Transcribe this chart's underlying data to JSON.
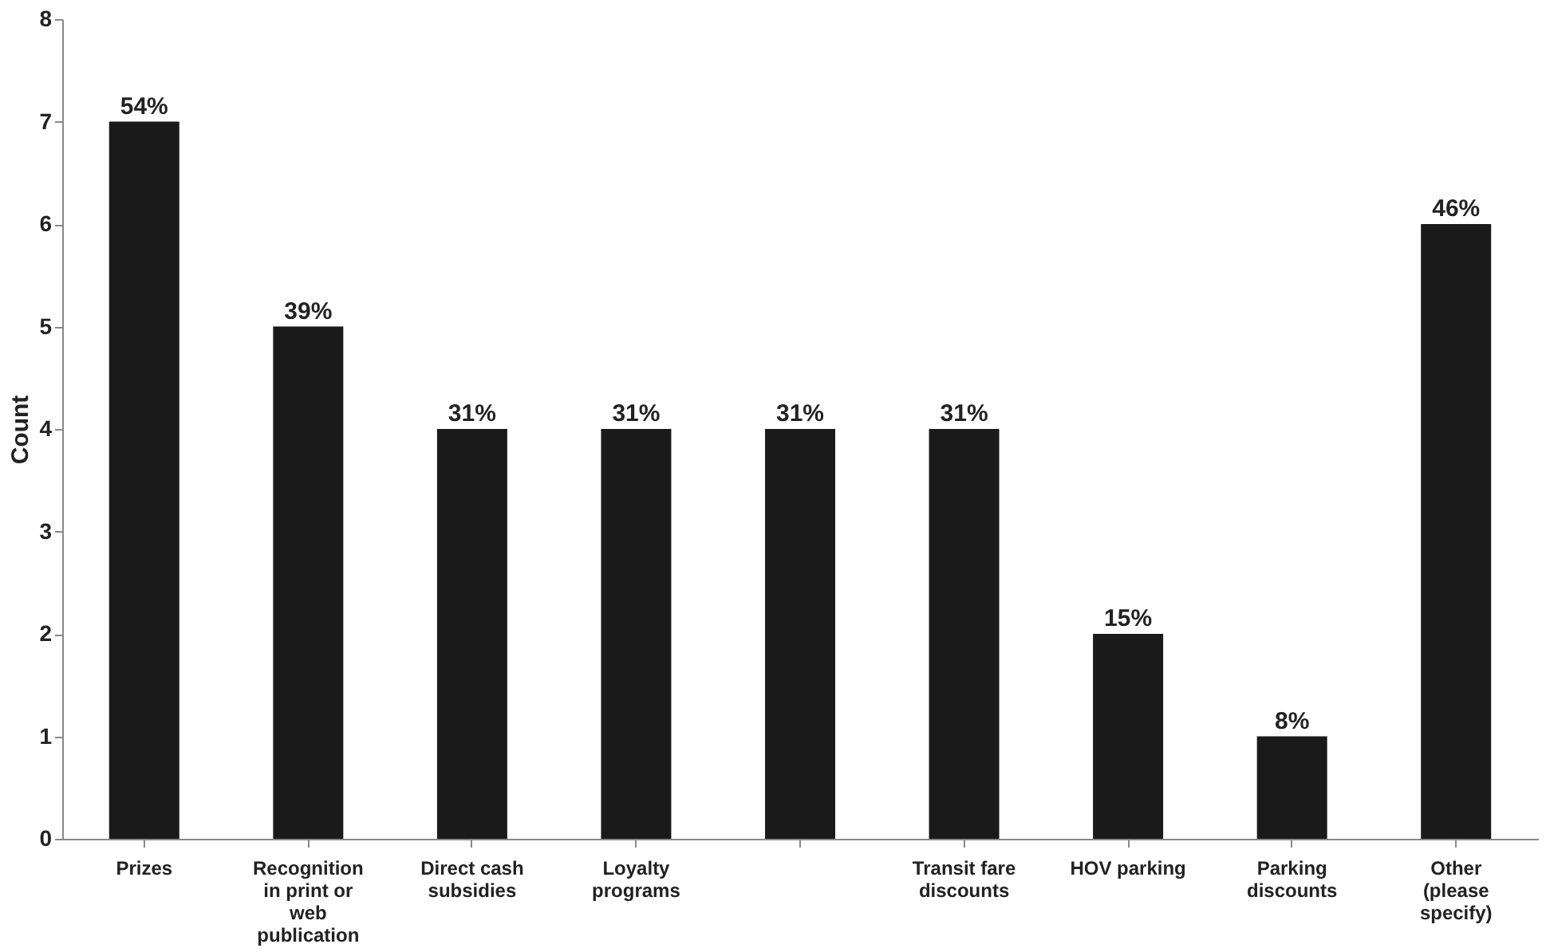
{
  "chart_data": {
    "type": "bar",
    "ylabel": "Count",
    "categories": [
      "Prizes",
      "Recognition in print or web publication",
      "Direct cash subsidies",
      "Loyalty programs",
      null,
      "Transit fare discounts",
      "HOV parking",
      "Parking discounts",
      "Other (please specify)"
    ],
    "values": [
      7,
      5,
      4,
      4,
      4,
      4,
      2,
      1,
      6
    ],
    "annotations": [
      {
        "text": "54%",
        "x": "Prizes",
        "y": 7
      },
      {
        "text": "39%",
        "x": "Recognition in print or web publication",
        "y": 5
      },
      {
        "text": "31%",
        "x": "Direct cash subsidies",
        "y": 4
      },
      {
        "text": "31%",
        "x": "Loyalty programs",
        "y": 4
      },
      {
        "text": "31%",
        "y": 4
      },
      {
        "text": "31%",
        "x": "Transit fare discounts",
        "y": 4
      },
      {
        "text": "15%",
        "x": "HOV parking",
        "y": 2
      },
      {
        "text": "8%",
        "x": "Parking discounts",
        "y": 1
      },
      {
        "text": "46%",
        "x": "Other (please specify)",
        "y": 6
      }
    ],
    "color": "#1a1a1a",
    "ylim": [
      0,
      8
    ],
    "yticks": [
      0,
      1,
      2,
      3,
      4,
      5,
      6,
      7,
      8
    ],
    "grid": false
  }
}
